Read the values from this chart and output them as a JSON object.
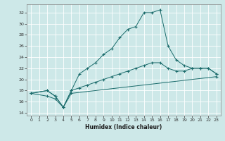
{
  "xlabel": "Humidex (Indice chaleur)",
  "background_color": "#cde8e8",
  "grid_color": "#ffffff",
  "line_color": "#1a6b6b",
  "xlim": [
    -0.5,
    23.5
  ],
  "ylim": [
    13.5,
    33.5
  ],
  "yticks": [
    14,
    16,
    18,
    20,
    22,
    24,
    26,
    28,
    30,
    32
  ],
  "xticks": [
    0,
    1,
    2,
    3,
    4,
    5,
    6,
    7,
    8,
    9,
    10,
    11,
    12,
    13,
    14,
    15,
    16,
    17,
    18,
    19,
    20,
    21,
    22,
    23
  ],
  "series": [
    {
      "x": [
        0,
        2,
        3,
        4,
        5,
        6,
        7,
        8,
        9,
        10,
        11,
        12,
        13,
        14,
        15,
        16,
        17,
        18,
        19,
        20,
        21,
        22,
        23
      ],
      "y": [
        17.5,
        18,
        17,
        15,
        18,
        21,
        22,
        23,
        24.5,
        25.5,
        27.5,
        29,
        29.5,
        32,
        32,
        32.5,
        26,
        23.5,
        22.5,
        22,
        22,
        22,
        21
      ]
    },
    {
      "x": [
        0,
        2,
        3,
        4,
        5,
        6,
        7,
        8,
        9,
        10,
        11,
        12,
        13,
        14,
        15,
        16,
        17,
        18,
        19,
        20,
        21,
        22,
        23
      ],
      "y": [
        17.5,
        18,
        17,
        15,
        18,
        18.5,
        19,
        19.5,
        20,
        20.5,
        21,
        21.5,
        22,
        22.5,
        23,
        23,
        22,
        21.5,
        21.5,
        22,
        22,
        22,
        21
      ]
    },
    {
      "x": [
        0,
        2,
        3,
        4,
        5,
        23
      ],
      "y": [
        17.5,
        17,
        16.5,
        15,
        17.5,
        20.5
      ]
    }
  ]
}
